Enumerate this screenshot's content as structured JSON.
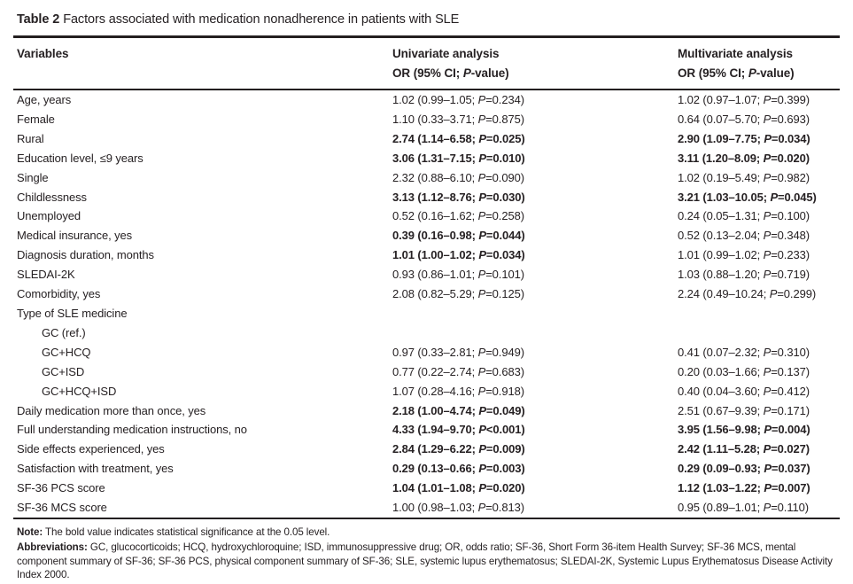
{
  "page": {
    "title_label": "Table 2",
    "title_text": "Factors associated with medication nonadherence in patients with SLE"
  },
  "header": {
    "variables": "Variables",
    "univariate_title": "Univariate analysis",
    "multivariate_title": "Multivariate analysis",
    "or_prefix": "OR (95% CI; ",
    "p_italic": "P",
    "or_suffix": "-value)"
  },
  "rows": [
    {
      "label": "Age, years",
      "indent": false,
      "uni": "1.02 (0.99–1.05; P=0.234)",
      "uni_bold": false,
      "multi": "1.02 (0.97–1.07; P=0.399)",
      "multi_bold": false
    },
    {
      "label": "Female",
      "indent": false,
      "uni": "1.10 (0.33–3.71; P=0.875)",
      "uni_bold": false,
      "multi": "0.64 (0.07–5.70; P=0.693)",
      "multi_bold": false
    },
    {
      "label": "Rural",
      "indent": false,
      "uni": "2.74 (1.14–6.58; P=0.025)",
      "uni_bold": true,
      "multi": "2.90 (1.09–7.75; P=0.034)",
      "multi_bold": true
    },
    {
      "label": "Education level, ≤9 years",
      "indent": false,
      "uni": "3.06 (1.31–7.15; P=0.010)",
      "uni_bold": true,
      "multi": "3.11 (1.20–8.09; P=0.020)",
      "multi_bold": true
    },
    {
      "label": "Single",
      "indent": false,
      "uni": "2.32 (0.88–6.10; P=0.090)",
      "uni_bold": false,
      "multi": "1.02 (0.19–5.49; P=0.982)",
      "multi_bold": false
    },
    {
      "label": "Childlessness",
      "indent": false,
      "uni": "3.13 (1.12–8.76; P=0.030)",
      "uni_bold": true,
      "multi": "3.21 (1.03–10.05; P=0.045)",
      "multi_bold": true
    },
    {
      "label": "Unemployed",
      "indent": false,
      "uni": "0.52 (0.16–1.62; P=0.258)",
      "uni_bold": false,
      "multi": "0.24 (0.05–1.31; P=0.100)",
      "multi_bold": false
    },
    {
      "label": "Medical insurance, yes",
      "indent": false,
      "uni": "0.39 (0.16–0.98; P=0.044)",
      "uni_bold": true,
      "multi": "0.52 (0.13–2.04; P=0.348)",
      "multi_bold": false
    },
    {
      "label": "Diagnosis duration, months",
      "indent": false,
      "uni": "1.01 (1.00–1.02; P=0.034)",
      "uni_bold": true,
      "multi": "1.01 (0.99–1.02; P=0.233)",
      "multi_bold": false
    },
    {
      "label": "SLEDAI-2K",
      "indent": false,
      "uni": "0.93 (0.86–1.01; P=0.101)",
      "uni_bold": false,
      "multi": "1.03 (0.88–1.20; P=0.719)",
      "multi_bold": false
    },
    {
      "label": "Comorbidity, yes",
      "indent": false,
      "uni": "2.08 (0.82–5.29; P=0.125)",
      "uni_bold": false,
      "multi": "2.24 (0.49–10.24; P=0.299)",
      "multi_bold": false
    },
    {
      "label": "Type of SLE medicine",
      "indent": false,
      "uni": "",
      "uni_bold": false,
      "multi": "",
      "multi_bold": false
    },
    {
      "label": "GC (ref.)",
      "indent": true,
      "uni": "",
      "uni_bold": false,
      "multi": "",
      "multi_bold": false
    },
    {
      "label": "GC+HCQ",
      "indent": true,
      "uni": "0.97 (0.33–2.81; P=0.949)",
      "uni_bold": false,
      "multi": "0.41 (0.07–2.32; P=0.310)",
      "multi_bold": false
    },
    {
      "label": "GC+ISD",
      "indent": true,
      "uni": "0.77 (0.22–2.74; P=0.683)",
      "uni_bold": false,
      "multi": "0.20 (0.03–1.66; P=0.137)",
      "multi_bold": false
    },
    {
      "label": "GC+HCQ+ISD",
      "indent": true,
      "uni": "1.07 (0.28–4.16; P=0.918)",
      "uni_bold": false,
      "multi": "0.40 (0.04–3.60; P=0.412)",
      "multi_bold": false
    },
    {
      "label": "Daily medication more than once, yes",
      "indent": false,
      "uni": "2.18 (1.00–4.74; P=0.049)",
      "uni_bold": true,
      "multi": "2.51 (0.67–9.39; P=0.171)",
      "multi_bold": false
    },
    {
      "label": "Full understanding medication instructions, no",
      "indent": false,
      "uni": "4.33 (1.94–9.70; P<0.001)",
      "uni_bold": true,
      "multi": "3.95 (1.56–9.98; P=0.004)",
      "multi_bold": true
    },
    {
      "label": "Side effects experienced, yes",
      "indent": false,
      "uni": "2.84 (1.29–6.22; P=0.009)",
      "uni_bold": true,
      "multi": "2.42 (1.11–5.28; P=0.027)",
      "multi_bold": true
    },
    {
      "label": "Satisfaction with treatment, yes",
      "indent": false,
      "uni": "0.29 (0.13–0.66; P=0.003)",
      "uni_bold": true,
      "multi": "0.29 (0.09–0.93; P=0.037)",
      "multi_bold": true
    },
    {
      "label": "SF-36 PCS score",
      "indent": false,
      "uni": "1.04 (1.01–1.08; P=0.020)",
      "uni_bold": true,
      "multi": "1.12 (1.03–1.22; P=0.007)",
      "multi_bold": true
    },
    {
      "label": "SF-36 MCS score",
      "indent": false,
      "uni": "1.00 (0.98–1.03; P=0.813)",
      "uni_bold": false,
      "multi": "0.95 (0.89–1.01; P=0.110)",
      "multi_bold": false
    }
  ],
  "notes": {
    "note_label": "Note:",
    "note_text": " The bold value indicates statistical significance at the 0.05 level.",
    "abbr_label": "Abbreviations:",
    "abbr_text": " GC, glucocorticoids; HCQ, hydroxychloroquine; ISD, immunosuppressive drug; OR, odds ratio; SF-36, Short Form 36-item Health Survey; SF-36 MCS, mental component summary of SF-36; SF-36 PCS, physical component summary of SF-36; SLE, systemic lupus erythematosus; SLEDAI-2K, Systemic Lupus Erythematosus Disease Activity Index 2000."
  },
  "colors": {
    "text": "#262123",
    "rule": "#231f20",
    "background": "#ffffff"
  }
}
